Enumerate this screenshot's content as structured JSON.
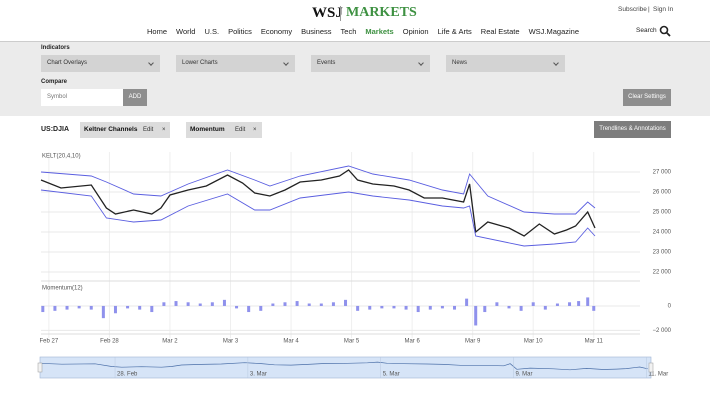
{
  "header": {
    "logo": "WSJ",
    "section": "MARKETS",
    "subscribe": "Subscribe",
    "separator": "|",
    "sign_in": "Sign In",
    "search": "Search"
  },
  "nav": [
    "Home",
    "World",
    "U.S.",
    "Politics",
    "Economy",
    "Business",
    "Tech",
    "Markets",
    "Opinion",
    "Life & Arts",
    "Real Estate",
    "WSJ.Magazine"
  ],
  "controls": {
    "indicators_label": "Indicators",
    "dropdowns": [
      "Chart Overlays",
      "Lower Charts",
      "Events",
      "News"
    ],
    "compare_label": "Compare",
    "symbol_placeholder": "Symbol",
    "add": "ADD",
    "clear": "Clear Settings"
  },
  "chart_bar": {
    "symbol": "US:DJIA",
    "chips": [
      {
        "name": "Keltner Channels",
        "edit": "Edit",
        "remove": "×"
      },
      {
        "name": "Momentum",
        "edit": "Edit",
        "remove": "×"
      }
    ],
    "trendlines": "Trendlines & Annotations"
  },
  "chart_data": [
    {
      "type": "line",
      "title": "KELT(20,4,10)",
      "xlim": [
        -0.13,
        9.07
      ],
      "ylim": [
        21550,
        28000
      ],
      "grid": true,
      "xticks": [
        {
          "value": 0,
          "label": "Feb 27"
        },
        {
          "value": 1,
          "label": "Feb 28"
        },
        {
          "value": 2,
          "label": "Mar 2"
        },
        {
          "value": 3,
          "label": "Mar 3"
        },
        {
          "value": 4,
          "label": "Mar 4"
        },
        {
          "value": 5,
          "label": "Mar 5"
        },
        {
          "value": 6,
          "label": "Mar 6"
        },
        {
          "value": 7,
          "label": "Mar 9"
        },
        {
          "value": 8,
          "label": "Mar 10"
        },
        {
          "value": 9,
          "label": "Mar 11"
        }
      ],
      "yticks": [
        {
          "value": 22000,
          "label": "22 000"
        },
        {
          "value": 23000,
          "label": "23 000"
        },
        {
          "value": 24000,
          "label": "24 000"
        },
        {
          "value": 25000,
          "label": "25 000"
        },
        {
          "value": 26000,
          "label": "26 000"
        },
        {
          "value": 27000,
          "label": "27 000"
        }
      ],
      "series": [
        {
          "color": "#222222",
          "x": [
            -0.13,
            0.2,
            0.7,
            0.95,
            1.1,
            1.4,
            1.7,
            1.85,
            2.0,
            2.3,
            2.6,
            2.95,
            3.2,
            3.4,
            3.65,
            3.9,
            4.15,
            4.5,
            4.8,
            4.95,
            5.1,
            5.35,
            5.7,
            5.95,
            6.2,
            6.5,
            6.85,
            6.95,
            7.05,
            7.25,
            7.6,
            7.85,
            8.1,
            8.35,
            8.55,
            8.7,
            8.9,
            9.02
          ],
          "values": [
            26600,
            26200,
            26350,
            25200,
            24900,
            25100,
            24900,
            25200,
            25850,
            26100,
            26300,
            26850,
            26450,
            25950,
            25800,
            26100,
            26500,
            26600,
            26800,
            27100,
            26600,
            26400,
            26300,
            26100,
            25700,
            25700,
            25500,
            26400,
            24000,
            24500,
            24200,
            23800,
            24400,
            23900,
            24100,
            24300,
            25000,
            24200
          ]
        },
        {
          "color": "#5a5ee0",
          "x": [
            -0.13,
            0.7,
            0.95,
            1.4,
            1.85,
            2.3,
            2.95,
            3.4,
            3.65,
            4.15,
            4.95,
            5.35,
            5.95,
            6.5,
            6.85,
            6.95,
            7.25,
            7.85,
            8.35,
            8.7,
            8.9,
            9.02
          ],
          "values": [
            27000,
            26800,
            26500,
            25900,
            25800,
            26400,
            27100,
            26600,
            26300,
            26800,
            27300,
            26900,
            26600,
            26100,
            25900,
            26900,
            25800,
            25000,
            24900,
            24900,
            25500,
            25200
          ]
        },
        {
          "color": "#5a5ee0",
          "x": [
            -0.13,
            0.7,
            0.95,
            1.4,
            1.85,
            2.3,
            2.95,
            3.4,
            3.65,
            4.15,
            4.95,
            5.35,
            5.95,
            6.5,
            6.85,
            6.95,
            7.05,
            7.85,
            8.35,
            8.7,
            8.9,
            9.02
          ],
          "values": [
            26100,
            25800,
            24700,
            24500,
            24600,
            25300,
            25900,
            25100,
            25100,
            25700,
            26000,
            25800,
            25600,
            25300,
            25200,
            25300,
            23800,
            23300,
            23400,
            23500,
            24200,
            23800
          ]
        }
      ]
    },
    {
      "type": "bar",
      "title": "Momentum(12)",
      "color": "#8f91ec",
      "xlim": [
        -0.13,
        9.07
      ],
      "ylim": [
        -2300,
        1800
      ],
      "grid": true,
      "yticks": [
        0,
        {
          "value": -2000,
          "label": "−2 000"
        }
      ],
      "x": [
        -0.1,
        0.1,
        0.3,
        0.5,
        0.7,
        0.9,
        1.1,
        1.3,
        1.5,
        1.7,
        1.9,
        2.1,
        2.3,
        2.5,
        2.7,
        2.9,
        3.1,
        3.3,
        3.5,
        3.7,
        3.9,
        4.1,
        4.3,
        4.5,
        4.7,
        4.9,
        5.1,
        5.3,
        5.5,
        5.7,
        5.9,
        6.1,
        6.3,
        6.5,
        6.7,
        6.9,
        7.05,
        7.2,
        7.4,
        7.6,
        7.8,
        8.0,
        8.2,
        8.4,
        8.6,
        8.75,
        8.9,
        9.0
      ],
      "values": [
        -500,
        -400,
        -300,
        -200,
        -300,
        -1000,
        -600,
        -200,
        -300,
        -500,
        300,
        400,
        300,
        200,
        300,
        500,
        -200,
        -500,
        -400,
        200,
        300,
        400,
        200,
        200,
        300,
        500,
        -400,
        -300,
        -200,
        -200,
        -300,
        -500,
        -300,
        -200,
        -300,
        600,
        -1600,
        -500,
        300,
        -200,
        -400,
        300,
        -300,
        200,
        300,
        400,
        700,
        -400
      ]
    },
    {
      "type": "navigator",
      "xticks": [
        {
          "value": 1,
          "label": "28. Feb"
        },
        {
          "value": 3,
          "label": "3. Mar"
        },
        {
          "value": 5,
          "label": "5. Mar"
        },
        {
          "value": 7,
          "label": "9. Mar"
        },
        {
          "value": 9,
          "label": "11. Mar"
        }
      ]
    }
  ]
}
